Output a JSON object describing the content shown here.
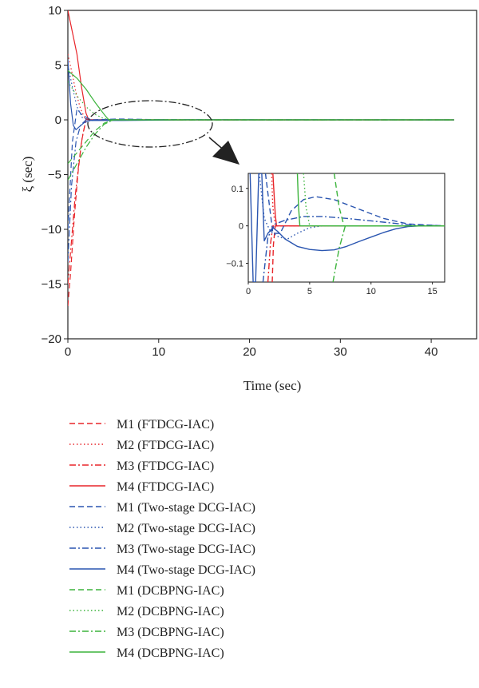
{
  "colors": {
    "ftdcg": "#e8252a",
    "twostage": "#2a55b0",
    "dcbpng": "#3cb43c",
    "axis": "#222222",
    "ellipse": "#222222"
  },
  "chart_data": [
    {
      "type": "line",
      "xlabel": "Time (sec)",
      "ylabel": "ξ (sec)",
      "xlim": [
        0,
        45
      ],
      "ylim": [
        -20,
        10
      ],
      "xticks": [
        "0",
        "10",
        "20",
        "30",
        "40"
      ],
      "yticks": [
        "10",
        "5",
        "0",
        "−5",
        "−10",
        "−15",
        "−20"
      ],
      "xtick_values": [
        0,
        10,
        20,
        30,
        40
      ],
      "ytick_values": [
        10,
        5,
        0,
        -5,
        -10,
        -15,
        -20
      ],
      "x_end": 42.5,
      "legend_position": "below-plot",
      "series": [
        {
          "name": "M1 (FTDCG-IAC)",
          "group": "ftdcg",
          "style": "dashed",
          "points": [
            [
              0,
              -17
            ],
            [
              0.3,
              -14
            ],
            [
              0.7,
              -9
            ],
            [
              1.1,
              -5
            ],
            [
              1.5,
              -2
            ],
            [
              2.0,
              0.1
            ],
            [
              2.5,
              0
            ],
            [
              42.5,
              0
            ]
          ]
        },
        {
          "name": "M2 (FTDCG-IAC)",
          "group": "ftdcg",
          "style": "dotted",
          "points": [
            [
              0,
              6
            ],
            [
              0.4,
              4.5
            ],
            [
              0.9,
              2.5
            ],
            [
              1.4,
              1
            ],
            [
              1.9,
              0.1
            ],
            [
              2.5,
              0
            ],
            [
              42.5,
              0
            ]
          ]
        },
        {
          "name": "M3 (FTDCG-IAC)",
          "group": "ftdcg",
          "style": "dashdot",
          "points": [
            [
              0,
              -15
            ],
            [
              0.4,
              -11
            ],
            [
              0.8,
              -7
            ],
            [
              1.2,
              -4
            ],
            [
              1.6,
              -1.5
            ],
            [
              2.0,
              0
            ],
            [
              42.5,
              0
            ]
          ]
        },
        {
          "name": "M4 (FTDCG-IAC)",
          "group": "ftdcg",
          "style": "solid",
          "points": [
            [
              0,
              10
            ],
            [
              0.5,
              8
            ],
            [
              1.0,
              6
            ],
            [
              1.5,
              3
            ],
            [
              2.0,
              0.6
            ],
            [
              2.3,
              0
            ],
            [
              42.5,
              0
            ]
          ]
        },
        {
          "name": "M1 (Two-stage DCG-IAC)",
          "group": "twostage",
          "style": "dashed",
          "points": [
            [
              0,
              -10
            ],
            [
              0.5,
              -2
            ],
            [
              1.0,
              1.0
            ],
            [
              1.5,
              0.5
            ],
            [
              2.5,
              0
            ],
            [
              5.5,
              0.08
            ],
            [
              10,
              0.02
            ],
            [
              13,
              0
            ],
            [
              42.5,
              0
            ]
          ]
        },
        {
          "name": "M2 (Two-stage DCG-IAC)",
          "group": "twostage",
          "style": "dotted",
          "points": [
            [
              0,
              5
            ],
            [
              0.5,
              3
            ],
            [
              1.0,
              1.2
            ],
            [
              1.6,
              0.2
            ],
            [
              2.5,
              -0.05
            ],
            [
              4,
              0
            ],
            [
              42.5,
              0
            ]
          ]
        },
        {
          "name": "M3 (Two-stage DCG-IAC)",
          "group": "twostage",
          "style": "dashdot",
          "points": [
            [
              0,
              -13
            ],
            [
              0.4,
              -6
            ],
            [
              0.9,
              -2
            ],
            [
              1.4,
              -0.5
            ],
            [
              2.0,
              0
            ],
            [
              5,
              0.02
            ],
            [
              42.5,
              0
            ]
          ]
        },
        {
          "name": "M4 (Two-stage DCG-IAC)",
          "group": "twostage",
          "style": "solid",
          "points": [
            [
              0,
              5.5
            ],
            [
              0.3,
              1.5
            ],
            [
              0.6,
              -0.5
            ],
            [
              0.9,
              -0.9
            ],
            [
              1.3,
              -0.6
            ],
            [
              1.8,
              -0.25
            ],
            [
              2.5,
              -0.05
            ],
            [
              6,
              -0.06
            ],
            [
              13,
              0
            ],
            [
              42.5,
              0
            ]
          ]
        },
        {
          "name": "M1 (DCBPNG-IAC)",
          "group": "dcbpng",
          "style": "dashed",
          "points": [
            [
              0,
              -4
            ],
            [
              1,
              -3
            ],
            [
              2,
              -2
            ],
            [
              3,
              -1
            ],
            [
              4,
              -0.3
            ],
            [
              5,
              0
            ],
            [
              42.5,
              0
            ]
          ]
        },
        {
          "name": "M2 (DCBPNG-IAC)",
          "group": "dcbpng",
          "style": "dotted",
          "points": [
            [
              0,
              3.5
            ],
            [
              1,
              2.2
            ],
            [
              2,
              1.2
            ],
            [
              3,
              0.5
            ],
            [
              4,
              0.1
            ],
            [
              5,
              0
            ],
            [
              42.5,
              0
            ]
          ]
        },
        {
          "name": "M3 (DCBPNG-IAC)",
          "group": "dcbpng",
          "style": "dashdot",
          "points": [
            [
              0,
              -5.5
            ],
            [
              1,
              -4
            ],
            [
              2,
              -2.5
            ],
            [
              3,
              -1.3
            ],
            [
              4,
              -0.4
            ],
            [
              5,
              0
            ],
            [
              42.5,
              0
            ]
          ]
        },
        {
          "name": "M4 (DCBPNG-IAC)",
          "group": "dcbpng",
          "style": "solid",
          "points": [
            [
              0,
              4.5
            ],
            [
              1,
              3.8
            ],
            [
              2,
              2.8
            ],
            [
              3,
              1.6
            ],
            [
              4,
              0.5
            ],
            [
              4.5,
              0
            ],
            [
              42.5,
              0
            ]
          ]
        }
      ]
    },
    {
      "type": "line",
      "role": "inset-zoom",
      "xlim": [
        0,
        16
      ],
      "ylim": [
        -0.15,
        0.14
      ],
      "xticks": [
        "0",
        "5",
        "10",
        "15"
      ],
      "yticks": [
        "0.1",
        "0",
        "−0.1"
      ],
      "xtick_values": [
        0,
        5,
        10,
        15
      ],
      "ytick_values": [
        0.1,
        0,
        -0.1
      ],
      "series": [
        {
          "name": "M1 (FTDCG-IAC)",
          "group": "ftdcg",
          "style": "dashed",
          "points": [
            [
              1.95,
              -0.15
            ],
            [
              2.05,
              -0.05
            ],
            [
              2.2,
              0
            ],
            [
              16,
              0
            ]
          ]
        },
        {
          "name": "M2 (FTDCG-IAC)",
          "group": "ftdcg",
          "style": "dotted",
          "points": [
            [
              1.9,
              0.14
            ],
            [
              2.0,
              0.05
            ],
            [
              2.2,
              0
            ],
            [
              16,
              0
            ]
          ]
        },
        {
          "name": "M3 (FTDCG-IAC)",
          "group": "ftdcg",
          "style": "dashdot",
          "points": [
            [
              1.6,
              -0.15
            ],
            [
              1.8,
              -0.05
            ],
            [
              2.0,
              0
            ],
            [
              16,
              0
            ]
          ]
        },
        {
          "name": "M4 (FTDCG-IAC)",
          "group": "ftdcg",
          "style": "solid",
          "points": [
            [
              2.0,
              0.14
            ],
            [
              2.2,
              0.03
            ],
            [
              2.3,
              0
            ],
            [
              16,
              0
            ]
          ]
        },
        {
          "name": "M1 (Two-stage DCG-IAC)",
          "group": "twostage",
          "style": "dashed",
          "points": [
            [
              1.4,
              0.14
            ],
            [
              2.0,
              -0.02
            ],
            [
              2.6,
              -0.02
            ],
            [
              3.5,
              0.04
            ],
            [
              4.5,
              0.07
            ],
            [
              5.5,
              0.078
            ],
            [
              7,
              0.07
            ],
            [
              9,
              0.045
            ],
            [
              11,
              0.02
            ],
            [
              13,
              0.005
            ],
            [
              16,
              0
            ]
          ]
        },
        {
          "name": "M2 (Two-stage DCG-IAC)",
          "group": "twostage",
          "style": "dotted",
          "points": [
            [
              0.9,
              0.14
            ],
            [
              1.3,
              0.02
            ],
            [
              1.8,
              -0.015
            ],
            [
              2.5,
              -0.03
            ],
            [
              3.2,
              -0.035
            ],
            [
              4,
              -0.02
            ],
            [
              5,
              -0.005
            ],
            [
              6,
              0
            ],
            [
              16,
              0
            ]
          ]
        },
        {
          "name": "M3 (Two-stage DCG-IAC)",
          "group": "twostage",
          "style": "dashdot",
          "points": [
            [
              1.2,
              -0.15
            ],
            [
              1.6,
              -0.03
            ],
            [
              2.2,
              0.005
            ],
            [
              3,
              0.015
            ],
            [
              4.5,
              0.025
            ],
            [
              6,
              0.025
            ],
            [
              8,
              0.02
            ],
            [
              11,
              0.01
            ],
            [
              13,
              0.003
            ],
            [
              16,
              0
            ]
          ]
        },
        {
          "name": "M4 (Two-stage DCG-IAC)",
          "group": "twostage",
          "style": "solid",
          "points": [
            [
              0.15,
              0.14
            ],
            [
              0.4,
              -0.15
            ],
            [
              0.6,
              -0.15
            ],
            [
              0.85,
              0.14
            ],
            [
              1.1,
              0.14
            ],
            [
              1.3,
              -0.04
            ],
            [
              1.6,
              -0.02
            ],
            [
              2.0,
              -0.005
            ],
            [
              2.4,
              -0.015
            ],
            [
              3,
              -0.035
            ],
            [
              4,
              -0.055
            ],
            [
              5,
              -0.063
            ],
            [
              6,
              -0.066
            ],
            [
              7,
              -0.064
            ],
            [
              8,
              -0.055
            ],
            [
              9,
              -0.042
            ],
            [
              10,
              -0.03
            ],
            [
              11,
              -0.018
            ],
            [
              12,
              -0.008
            ],
            [
              13,
              -0.002
            ],
            [
              14,
              0
            ],
            [
              16,
              0
            ]
          ]
        },
        {
          "name": "M1 (DCBPNG-IAC)",
          "group": "dcbpng",
          "style": "dashed",
          "points": [
            [
              7.0,
              0.14
            ],
            [
              7.4,
              0.05
            ],
            [
              7.8,
              0
            ],
            [
              16,
              0
            ]
          ]
        },
        {
          "name": "M2 (DCBPNG-IAC)",
          "group": "dcbpng",
          "style": "dotted",
          "points": [
            [
              4.5,
              0.14
            ],
            [
              4.7,
              0.05
            ],
            [
              5.0,
              0
            ],
            [
              16,
              0
            ]
          ]
        },
        {
          "name": "M3 (DCBPNG-IAC)",
          "group": "dcbpng",
          "style": "dashdot",
          "points": [
            [
              6.9,
              -0.15
            ],
            [
              7.4,
              -0.06
            ],
            [
              7.9,
              0
            ],
            [
              16,
              0
            ]
          ]
        },
        {
          "name": "M4 (DCBPNG-IAC)",
          "group": "dcbpng",
          "style": "solid",
          "points": [
            [
              4.0,
              0.14
            ],
            [
              4.1,
              0.05
            ],
            [
              4.2,
              0
            ],
            [
              16,
              0
            ]
          ]
        }
      ]
    }
  ]
}
